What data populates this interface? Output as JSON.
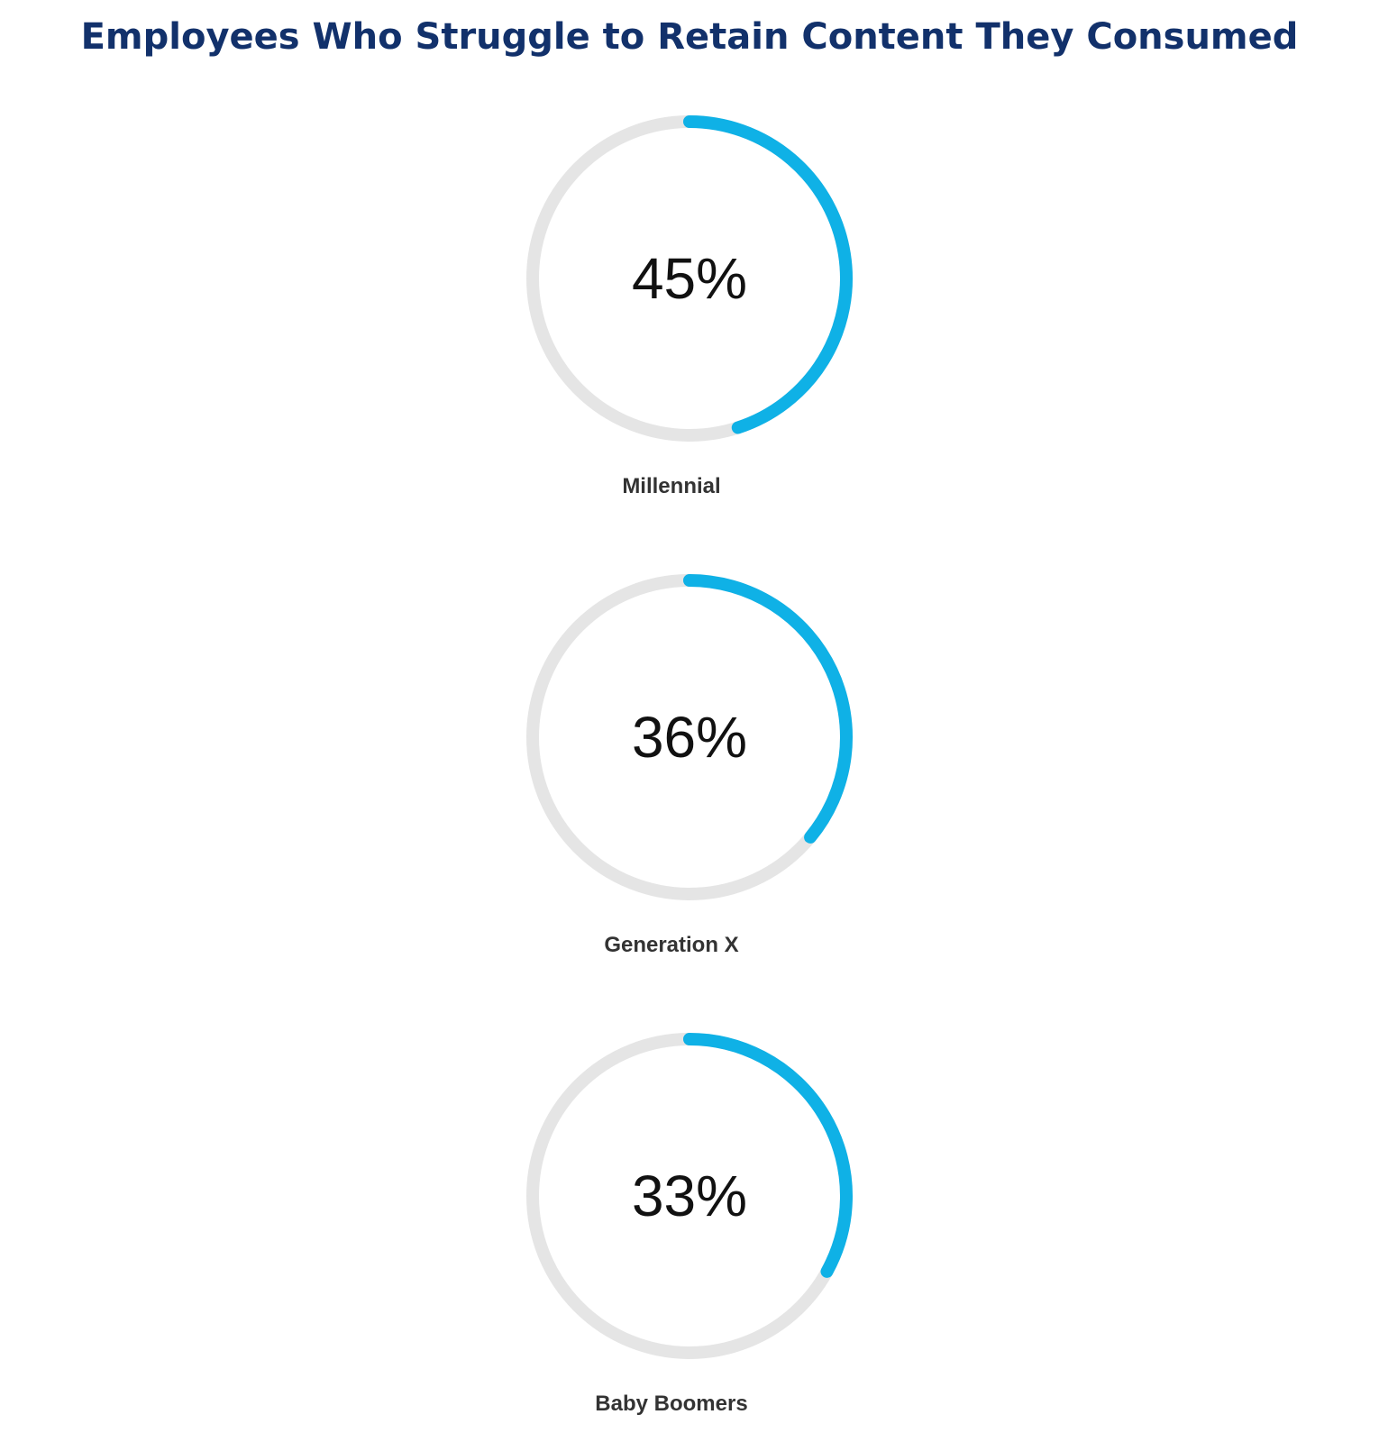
{
  "chart_data": {
    "type": "pie",
    "title": "Employees Who Struggle to Retain Content They Consumed",
    "categories": [
      "Millennial",
      "Generation X",
      "Baby Boomers"
    ],
    "values": [
      45,
      36,
      33
    ],
    "value_labels": [
      "45%",
      "36%",
      "33%"
    ],
    "max_value": 100,
    "style": "progress-ring",
    "colors": {
      "title": "#12316b",
      "fill": "#0fb1e6",
      "track": "#e5e5e5"
    }
  }
}
